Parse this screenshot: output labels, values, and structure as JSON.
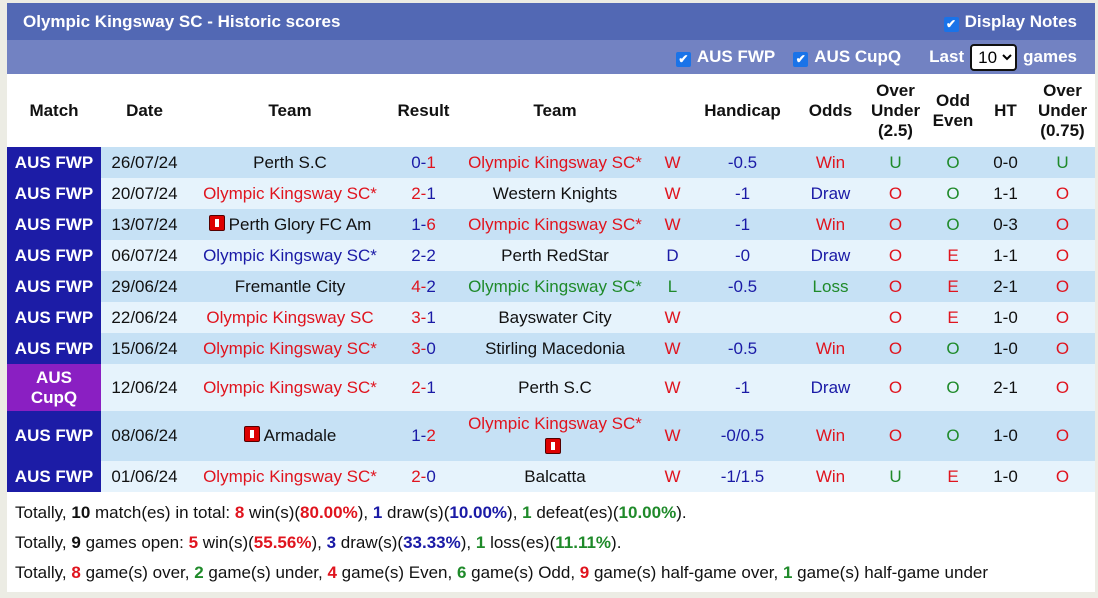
{
  "title": "Olympic Kingsway SC - Historic scores",
  "display_notes": {
    "label": "Display Notes",
    "checked": true
  },
  "filters": [
    {
      "label": "AUS FWP",
      "checked": true
    },
    {
      "label": "AUS CupQ",
      "checked": true
    }
  ],
  "last_label": "Last",
  "last_value": "10",
  "games_label": "games",
  "columns": [
    "Match",
    "Date",
    "Team",
    "Result",
    "Team",
    "",
    "Handicap",
    "Odds",
    "Over Under (2.5)",
    "Odd Even",
    "HT",
    "Over Under (0.75)"
  ],
  "colors": {
    "red": "#e0141e",
    "blue": "#1a1aa6",
    "green": "#1f8a2a",
    "match_bg": "#1c1ca6",
    "cup_bg": "#8a1fc2"
  },
  "rows": [
    {
      "match": "AUS FWP",
      "date": "26/07/24",
      "home": "Perth S.C",
      "home_color": "black",
      "hs": "0",
      "hs_color": "blue",
      "as": "1",
      "as_color": "red",
      "away": "Olympic Kingsway SC*",
      "away_color": "red",
      "wl": "W",
      "wl_color": "red",
      "handicap": "-0.5",
      "odds": "Win",
      "odds_color": "red",
      "ou": "U",
      "oe": "O",
      "ht": "0-0",
      "ou075": "U"
    },
    {
      "match": "AUS FWP",
      "date": "20/07/24",
      "home": "Olympic Kingsway SC*",
      "home_color": "red",
      "hs": "2",
      "hs_color": "red",
      "as": "1",
      "as_color": "blue",
      "away": "Western Knights",
      "away_color": "black",
      "wl": "W",
      "wl_color": "red",
      "handicap": "-1",
      "odds": "Draw",
      "odds_color": "blue",
      "ou": "O",
      "oe": "O",
      "ht": "1-1",
      "ou075": "O"
    },
    {
      "match": "AUS FWP",
      "date": "13/07/24",
      "home": "Perth Glory FC Am",
      "home_flag": true,
      "home_color": "black",
      "hs": "1",
      "hs_color": "blue",
      "as": "6",
      "as_color": "red",
      "away": "Olympic Kingsway SC*",
      "away_color": "red",
      "wl": "W",
      "wl_color": "red",
      "handicap": "-1",
      "odds": "Win",
      "odds_color": "red",
      "ou": "O",
      "oe": "O",
      "ht": "0-3",
      "ou075": "O"
    },
    {
      "match": "AUS FWP",
      "date": "06/07/24",
      "home": "Olympic Kingsway SC*",
      "home_color": "blue",
      "hs": "2",
      "hs_color": "blue",
      "as": "2",
      "as_color": "blue",
      "away": "Perth RedStar",
      "away_color": "black",
      "wl": "D",
      "wl_color": "blue",
      "handicap": "-0",
      "odds": "Draw",
      "odds_color": "blue",
      "ou": "O",
      "oe": "E",
      "ht": "1-1",
      "ou075": "O"
    },
    {
      "match": "AUS FWP",
      "date": "29/06/24",
      "home": "Fremantle City",
      "home_color": "black",
      "hs": "4",
      "hs_color": "red",
      "as": "2",
      "as_color": "blue",
      "away": "Olympic Kingsway SC*",
      "away_color": "green",
      "wl": "L",
      "wl_color": "green",
      "handicap": "-0.5",
      "odds": "Loss",
      "odds_color": "green",
      "ou": "O",
      "oe": "E",
      "ht": "2-1",
      "ou075": "O"
    },
    {
      "match": "AUS FWP",
      "date": "22/06/24",
      "home": "Olympic Kingsway SC",
      "home_color": "red",
      "hs": "3",
      "hs_color": "red",
      "as": "1",
      "as_color": "blue",
      "away": "Bayswater City",
      "away_color": "black",
      "wl": "W",
      "wl_color": "red",
      "handicap": "",
      "odds": "",
      "odds_color": "red",
      "ou": "O",
      "oe": "E",
      "ht": "1-0",
      "ou075": "O"
    },
    {
      "match": "AUS FWP",
      "date": "15/06/24",
      "home": "Olympic Kingsway SC*",
      "home_color": "red",
      "hs": "3",
      "hs_color": "red",
      "as": "0",
      "as_color": "blue",
      "away": "Stirling Macedonia",
      "away_color": "black",
      "wl": "W",
      "wl_color": "red",
      "handicap": "-0.5",
      "odds": "Win",
      "odds_color": "red",
      "ou": "O",
      "oe": "O",
      "ht": "1-0",
      "ou075": "O"
    },
    {
      "match": "AUS CupQ",
      "cup": true,
      "date": "12/06/24",
      "home": "Olympic Kingsway SC*",
      "home_color": "red",
      "hs": "2",
      "hs_color": "red",
      "as": "1",
      "as_color": "blue",
      "away": "Perth S.C",
      "away_color": "black",
      "wl": "W",
      "wl_color": "red",
      "handicap": "-1",
      "odds": "Draw",
      "odds_color": "blue",
      "ou": "O",
      "oe": "O",
      "ht": "2-1",
      "ou075": "O"
    },
    {
      "match": "AUS FWP",
      "date": "08/06/24",
      "home": "Armadale",
      "home_flag": true,
      "home_color": "black",
      "hs": "1",
      "hs_color": "blue",
      "as": "2",
      "as_color": "red",
      "away": "Olympic Kingsway SC*",
      "away_color": "red",
      "away_flag_below": true,
      "wl": "W",
      "wl_color": "red",
      "handicap": "-0/0.5",
      "odds": "Win",
      "odds_color": "red",
      "ou": "O",
      "oe": "O",
      "ht": "1-0",
      "ou075": "O"
    },
    {
      "match": "AUS FWP",
      "date": "01/06/24",
      "home": "Olympic Kingsway SC*",
      "home_color": "red",
      "hs": "2",
      "hs_color": "red",
      "as": "0",
      "as_color": "blue",
      "away": "Balcatta",
      "away_color": "black",
      "wl": "W",
      "wl_color": "red",
      "handicap": "-1/1.5",
      "odds": "Win",
      "odds_color": "red",
      "ou": "U",
      "oe": "E",
      "ht": "1-0",
      "ou075": "O"
    }
  ],
  "summary": [
    [
      [
        "Totally, ",
        "black",
        false
      ],
      [
        "10",
        "black",
        true
      ],
      [
        " match(es) in total: ",
        "black",
        false
      ],
      [
        "8",
        "red",
        true
      ],
      [
        " win(s)(",
        "black",
        false
      ],
      [
        "80.00%",
        "red",
        true
      ],
      [
        "), ",
        "black",
        false
      ],
      [
        "1",
        "blue",
        true
      ],
      [
        " draw(s)(",
        "black",
        false
      ],
      [
        "10.00%",
        "blue",
        true
      ],
      [
        "), ",
        "black",
        false
      ],
      [
        "1",
        "green",
        true
      ],
      [
        " defeat(es)(",
        "black",
        false
      ],
      [
        "10.00%",
        "green",
        true
      ],
      [
        ").",
        "black",
        false
      ]
    ],
    [
      [
        "Totally, ",
        "black",
        false
      ],
      [
        "9",
        "black",
        true
      ],
      [
        " games open: ",
        "black",
        false
      ],
      [
        "5",
        "red",
        true
      ],
      [
        " win(s)(",
        "black",
        false
      ],
      [
        "55.56%",
        "red",
        true
      ],
      [
        "), ",
        "black",
        false
      ],
      [
        "3",
        "blue",
        true
      ],
      [
        " draw(s)(",
        "black",
        false
      ],
      [
        "33.33%",
        "blue",
        true
      ],
      [
        "), ",
        "black",
        false
      ],
      [
        "1",
        "green",
        true
      ],
      [
        " loss(es)(",
        "black",
        false
      ],
      [
        "11.11%",
        "green",
        true
      ],
      [
        ").",
        "black",
        false
      ]
    ],
    [
      [
        "Totally, ",
        "black",
        false
      ],
      [
        "8",
        "red",
        true
      ],
      [
        " game(s) over, ",
        "black",
        false
      ],
      [
        "2",
        "green",
        true
      ],
      [
        " game(s) under, ",
        "black",
        false
      ],
      [
        "4",
        "red",
        true
      ],
      [
        " game(s) Even, ",
        "black",
        false
      ],
      [
        "6",
        "green",
        true
      ],
      [
        " game(s) Odd, ",
        "black",
        false
      ],
      [
        "9",
        "red",
        true
      ],
      [
        " game(s) half-game over, ",
        "black",
        false
      ],
      [
        "1",
        "green",
        true
      ],
      [
        " game(s) half-game under",
        "black",
        false
      ]
    ]
  ]
}
